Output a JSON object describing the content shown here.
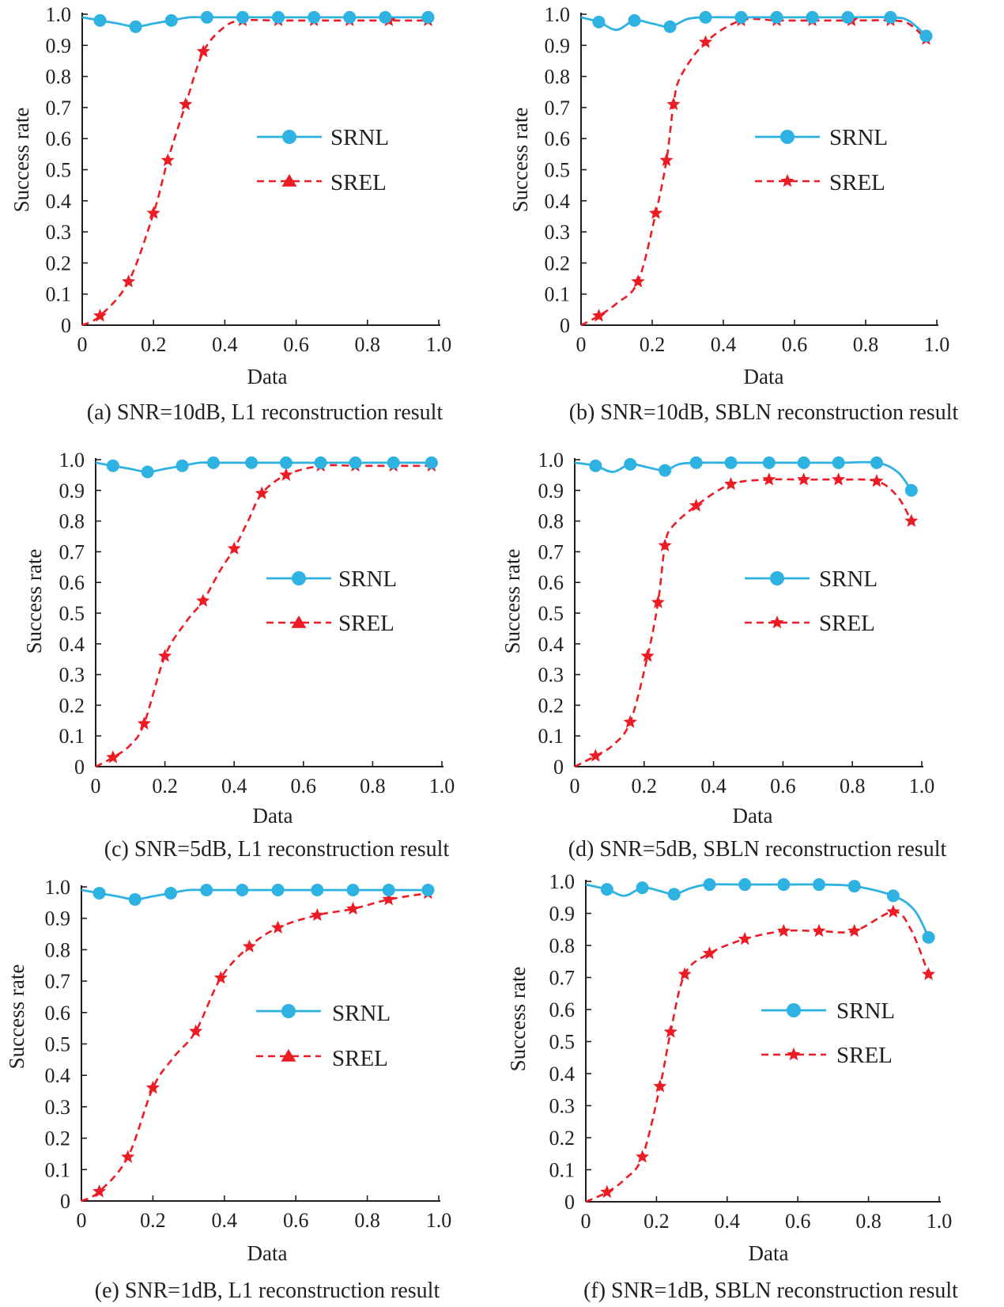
{
  "colors": {
    "srnl": "#2eb2e2",
    "srel": "#ec1c24",
    "axis": "#231f20"
  },
  "chart_data": [
    {
      "id": "a",
      "type": "line",
      "caption": "(a) SNR=10dB, L1 reconstruction result",
      "xlabel": "Data",
      "ylabel": "Success rate",
      "xlim": [
        0,
        1.0
      ],
      "ylim": [
        0,
        1.0
      ],
      "xticks": [
        "0",
        "0.2",
        "0.4",
        "0.6",
        "0.8",
        "1.0"
      ],
      "yticks": [
        "0",
        "0.1",
        "0.2",
        "0.3",
        "0.4",
        "0.5",
        "0.6",
        "0.7",
        "0.8",
        "0.9",
        "1.0"
      ],
      "legend": [
        "SRNL",
        "SREL"
      ],
      "legend_position": "center-right",
      "srel_legend_marker": "triangle",
      "series": [
        {
          "name": "SRNL",
          "line_x": [
            0,
            0.05,
            0.1,
            0.15,
            0.2,
            0.25,
            0.3,
            0.35,
            0.45,
            0.55,
            0.65,
            0.75,
            0.85,
            0.97
          ],
          "line_y": [
            0.99,
            0.98,
            0.97,
            0.96,
            0.97,
            0.98,
            0.99,
            0.99,
            0.99,
            0.99,
            0.99,
            0.99,
            0.99,
            0.99
          ],
          "marker_x": [
            0.05,
            0.15,
            0.25,
            0.35,
            0.45,
            0.55,
            0.65,
            0.75,
            0.85,
            0.97
          ],
          "marker_y": [
            0.98,
            0.96,
            0.98,
            0.99,
            0.99,
            0.99,
            0.99,
            0.99,
            0.99,
            0.99
          ]
        },
        {
          "name": "SREL",
          "line_x": [
            0,
            0.05,
            0.13,
            0.2,
            0.24,
            0.29,
            0.34,
            0.4,
            0.45,
            0.55,
            0.65,
            0.75,
            0.86,
            0.97
          ],
          "line_y": [
            0,
            0.03,
            0.14,
            0.36,
            0.53,
            0.71,
            0.88,
            0.96,
            0.98,
            0.98,
            0.98,
            0.98,
            0.98,
            0.98
          ],
          "marker_x": [
            0.05,
            0.13,
            0.2,
            0.24,
            0.29,
            0.34,
            0.45,
            0.55,
            0.65,
            0.75,
            0.86,
            0.97
          ],
          "marker_y": [
            0.03,
            0.14,
            0.36,
            0.53,
            0.71,
            0.88,
            0.98,
            0.98,
            0.98,
            0.98,
            0.98,
            0.98
          ]
        }
      ]
    },
    {
      "id": "b",
      "type": "line",
      "caption": "(b) SNR=10dB, SBLN reconstruction result",
      "xlabel": "Data",
      "ylabel": "Success rate",
      "xlim": [
        0,
        1.0
      ],
      "ylim": [
        0,
        1.0
      ],
      "xticks": [
        "0",
        "0.2",
        "0.4",
        "0.6",
        "0.8",
        "1.0"
      ],
      "yticks": [
        "0",
        "0.1",
        "0.2",
        "0.3",
        "0.4",
        "0.5",
        "0.6",
        "0.7",
        "0.8",
        "0.9",
        "1.0"
      ],
      "legend": [
        "SRNL",
        "SREL"
      ],
      "legend_position": "center-right",
      "srel_legend_marker": "star",
      "series": [
        {
          "name": "SRNL",
          "line_x": [
            0,
            0.05,
            0.1,
            0.15,
            0.2,
            0.25,
            0.3,
            0.35,
            0.45,
            0.55,
            0.65,
            0.75,
            0.87,
            0.92,
            0.97
          ],
          "line_y": [
            0.99,
            0.975,
            0.95,
            0.98,
            0.97,
            0.96,
            0.985,
            0.99,
            0.99,
            0.99,
            0.99,
            0.99,
            0.99,
            0.98,
            0.93
          ],
          "marker_x": [
            0.05,
            0.15,
            0.25,
            0.35,
            0.45,
            0.55,
            0.65,
            0.75,
            0.87,
            0.97
          ],
          "marker_y": [
            0.975,
            0.98,
            0.96,
            0.99,
            0.99,
            0.99,
            0.99,
            0.99,
            0.99,
            0.93
          ]
        },
        {
          "name": "SREL",
          "line_x": [
            0,
            0.05,
            0.1,
            0.16,
            0.21,
            0.24,
            0.26,
            0.28,
            0.35,
            0.45,
            0.55,
            0.65,
            0.76,
            0.87,
            0.92,
            0.97
          ],
          "line_y": [
            0,
            0.03,
            0.07,
            0.14,
            0.36,
            0.53,
            0.71,
            0.8,
            0.91,
            0.98,
            0.98,
            0.98,
            0.98,
            0.98,
            0.97,
            0.92
          ],
          "marker_x": [
            0.05,
            0.16,
            0.21,
            0.24,
            0.26,
            0.35,
            0.45,
            0.55,
            0.65,
            0.76,
            0.87,
            0.97
          ],
          "marker_y": [
            0.03,
            0.14,
            0.36,
            0.53,
            0.71,
            0.91,
            0.98,
            0.98,
            0.98,
            0.98,
            0.98,
            0.92
          ]
        }
      ]
    },
    {
      "id": "c",
      "type": "line",
      "caption": "(c) SNR=5dB, L1 reconstruction result",
      "xlabel": "Data",
      "ylabel": "Success rate",
      "xlim": [
        0,
        1.0
      ],
      "ylim": [
        0,
        1.0
      ],
      "xticks": [
        "0",
        "0.2",
        "0.4",
        "0.6",
        "0.8",
        "1.0"
      ],
      "yticks": [
        "0",
        "0.1",
        "0.2",
        "0.3",
        "0.4",
        "0.5",
        "0.6",
        "0.7",
        "0.8",
        "0.9",
        "1.0"
      ],
      "legend": [
        "SRNL",
        "SREL"
      ],
      "legend_position": "center-right",
      "srel_legend_marker": "triangle",
      "series": [
        {
          "name": "SRNL",
          "line_x": [
            0,
            0.05,
            0.1,
            0.15,
            0.2,
            0.25,
            0.3,
            0.34,
            0.45,
            0.55,
            0.65,
            0.75,
            0.86,
            0.97
          ],
          "line_y": [
            0.99,
            0.98,
            0.97,
            0.96,
            0.97,
            0.98,
            0.99,
            0.99,
            0.99,
            0.99,
            0.99,
            0.99,
            0.99,
            0.99
          ],
          "marker_x": [
            0.05,
            0.15,
            0.25,
            0.34,
            0.45,
            0.55,
            0.65,
            0.75,
            0.86,
            0.97
          ],
          "marker_y": [
            0.98,
            0.96,
            0.98,
            0.99,
            0.99,
            0.99,
            0.99,
            0.99,
            0.99,
            0.99
          ]
        },
        {
          "name": "SREL",
          "line_x": [
            0,
            0.05,
            0.1,
            0.14,
            0.2,
            0.26,
            0.31,
            0.36,
            0.4,
            0.44,
            0.48,
            0.55,
            0.65,
            0.75,
            0.86,
            0.97
          ],
          "line_y": [
            0,
            0.03,
            0.07,
            0.14,
            0.36,
            0.47,
            0.54,
            0.64,
            0.71,
            0.8,
            0.89,
            0.95,
            0.98,
            0.98,
            0.98,
            0.98
          ],
          "marker_x": [
            0.05,
            0.14,
            0.2,
            0.31,
            0.4,
            0.48,
            0.55,
            0.65,
            0.75,
            0.86,
            0.97
          ],
          "marker_y": [
            0.03,
            0.14,
            0.36,
            0.54,
            0.71,
            0.89,
            0.95,
            0.98,
            0.98,
            0.98,
            0.98
          ]
        }
      ]
    },
    {
      "id": "d",
      "type": "line",
      "caption": "(d) SNR=5dB, SBLN reconstruction result",
      "xlabel": "Data",
      "ylabel": "Success rate",
      "xlim": [
        0,
        1.0
      ],
      "ylim": [
        0,
        1.0
      ],
      "xticks": [
        "0",
        "0.2",
        "0.4",
        "0.6",
        "0.8",
        "1.0"
      ],
      "yticks": [
        "0",
        "0.1",
        "0.2",
        "0.3",
        "0.4",
        "0.5",
        "0.6",
        "0.7",
        "0.8",
        "0.9",
        "1.0"
      ],
      "legend": [
        "SRNL",
        "SREL"
      ],
      "legend_position": "center-right",
      "srel_legend_marker": "star",
      "series": [
        {
          "name": "SRNL",
          "line_x": [
            0,
            0.06,
            0.11,
            0.16,
            0.21,
            0.26,
            0.3,
            0.35,
            0.45,
            0.56,
            0.66,
            0.76,
            0.87,
            0.93,
            0.97
          ],
          "line_y": [
            0.99,
            0.98,
            0.96,
            0.985,
            0.975,
            0.965,
            0.985,
            0.99,
            0.99,
            0.99,
            0.99,
            0.99,
            0.99,
            0.96,
            0.9
          ],
          "marker_x": [
            0.06,
            0.16,
            0.26,
            0.35,
            0.45,
            0.56,
            0.66,
            0.76,
            0.87,
            0.97
          ],
          "marker_y": [
            0.98,
            0.985,
            0.965,
            0.99,
            0.99,
            0.99,
            0.99,
            0.99,
            0.99,
            0.9
          ]
        },
        {
          "name": "SREL",
          "line_x": [
            0,
            0.06,
            0.11,
            0.16,
            0.21,
            0.24,
            0.26,
            0.28,
            0.35,
            0.45,
            0.56,
            0.66,
            0.76,
            0.87,
            0.93,
            0.97
          ],
          "line_y": [
            0,
            0.035,
            0.07,
            0.145,
            0.36,
            0.535,
            0.72,
            0.78,
            0.85,
            0.92,
            0.935,
            0.935,
            0.935,
            0.93,
            0.88,
            0.8
          ],
          "marker_x": [
            0.06,
            0.16,
            0.21,
            0.24,
            0.26,
            0.35,
            0.45,
            0.56,
            0.66,
            0.76,
            0.87,
            0.97
          ],
          "marker_y": [
            0.035,
            0.145,
            0.36,
            0.535,
            0.72,
            0.85,
            0.92,
            0.935,
            0.935,
            0.935,
            0.93,
            0.8
          ]
        }
      ]
    },
    {
      "id": "e",
      "type": "line",
      "caption": "(e) SNR=1dB, L1 reconstruction result",
      "xlabel": "Data",
      "ylabel": "Success rate",
      "xlim": [
        0,
        1.0
      ],
      "ylim": [
        0,
        1.0
      ],
      "xticks": [
        "0",
        "0.2",
        "0.4",
        "0.6",
        "0.8",
        "1.0"
      ],
      "yticks": [
        "0",
        "0.1",
        "0.2",
        "0.3",
        "0.4",
        "0.5",
        "0.6",
        "0.7",
        "0.8",
        "0.9",
        "1.0"
      ],
      "legend": [
        "SRNL",
        "SREL"
      ],
      "legend_position": "center-right",
      "srel_legend_marker": "triangle",
      "series": [
        {
          "name": "SRNL",
          "line_x": [
            0,
            0.05,
            0.1,
            0.15,
            0.2,
            0.25,
            0.3,
            0.35,
            0.45,
            0.55,
            0.66,
            0.76,
            0.86,
            0.97
          ],
          "line_y": [
            0.99,
            0.98,
            0.97,
            0.96,
            0.97,
            0.98,
            0.99,
            0.99,
            0.99,
            0.99,
            0.99,
            0.99,
            0.99,
            0.99
          ],
          "marker_x": [
            0.05,
            0.15,
            0.25,
            0.35,
            0.45,
            0.55,
            0.66,
            0.76,
            0.86,
            0.97
          ],
          "marker_y": [
            0.98,
            0.96,
            0.98,
            0.99,
            0.99,
            0.99,
            0.99,
            0.99,
            0.99,
            0.99
          ]
        },
        {
          "name": "SREL",
          "line_x": [
            0,
            0.05,
            0.13,
            0.2,
            0.26,
            0.32,
            0.39,
            0.47,
            0.55,
            0.66,
            0.76,
            0.86,
            0.97
          ],
          "line_y": [
            0,
            0.03,
            0.14,
            0.36,
            0.46,
            0.54,
            0.71,
            0.81,
            0.87,
            0.91,
            0.93,
            0.96,
            0.98
          ],
          "marker_x": [
            0.05,
            0.13,
            0.2,
            0.32,
            0.39,
            0.47,
            0.55,
            0.66,
            0.76,
            0.86,
            0.97
          ],
          "marker_y": [
            0.03,
            0.14,
            0.36,
            0.54,
            0.71,
            0.81,
            0.87,
            0.91,
            0.93,
            0.96,
            0.98
          ]
        }
      ]
    },
    {
      "id": "f",
      "type": "line",
      "caption": "(f) SNR=1dB, SBLN reconstruction result",
      "xlabel": "Data",
      "ylabel": "Success rate",
      "xlim": [
        0,
        1.0
      ],
      "ylim": [
        0,
        1.0
      ],
      "xticks": [
        "0",
        "0.2",
        "0.4",
        "0.6",
        "0.8",
        "1.0"
      ],
      "yticks": [
        "0",
        "0.1",
        "0.2",
        "0.3",
        "0.4",
        "0.5",
        "0.6",
        "0.7",
        "0.8",
        "0.9",
        "1.0"
      ],
      "legend": [
        "SRNL",
        "SREL"
      ],
      "legend_position": "center-right",
      "srel_legend_marker": "star",
      "series": [
        {
          "name": "SRNL",
          "line_x": [
            0,
            0.06,
            0.11,
            0.16,
            0.21,
            0.25,
            0.3,
            0.35,
            0.45,
            0.56,
            0.66,
            0.76,
            0.87,
            0.93,
            0.97
          ],
          "line_y": [
            0.99,
            0.975,
            0.955,
            0.98,
            0.97,
            0.96,
            0.98,
            0.99,
            0.99,
            0.99,
            0.99,
            0.985,
            0.955,
            0.91,
            0.825
          ],
          "marker_x": [
            0.06,
            0.16,
            0.25,
            0.35,
            0.45,
            0.56,
            0.66,
            0.76,
            0.87,
            0.97
          ],
          "marker_y": [
            0.975,
            0.98,
            0.96,
            0.99,
            0.99,
            0.99,
            0.99,
            0.985,
            0.955,
            0.825
          ]
        },
        {
          "name": "SREL",
          "line_x": [
            0,
            0.06,
            0.11,
            0.16,
            0.21,
            0.24,
            0.28,
            0.35,
            0.45,
            0.56,
            0.66,
            0.76,
            0.87,
            0.92,
            0.97
          ],
          "line_y": [
            0,
            0.03,
            0.07,
            0.14,
            0.36,
            0.53,
            0.71,
            0.775,
            0.82,
            0.845,
            0.845,
            0.845,
            0.905,
            0.85,
            0.71
          ],
          "marker_x": [
            0.06,
            0.16,
            0.21,
            0.24,
            0.28,
            0.35,
            0.45,
            0.56,
            0.66,
            0.76,
            0.87,
            0.97
          ],
          "marker_y": [
            0.03,
            0.14,
            0.36,
            0.53,
            0.71,
            0.775,
            0.82,
            0.845,
            0.845,
            0.845,
            0.905,
            0.71
          ]
        }
      ]
    }
  ]
}
